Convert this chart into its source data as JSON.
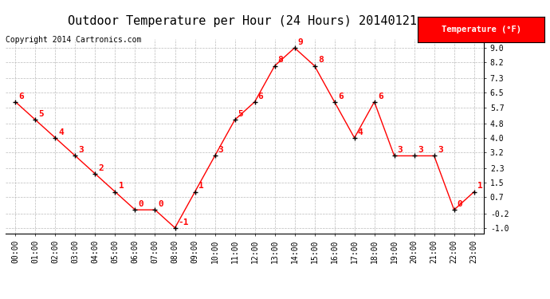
{
  "title": "Outdoor Temperature per Hour (24 Hours) 20140121",
  "copyright": "Copyright 2014 Cartronics.com",
  "legend_label": "Temperature (°F)",
  "hours": [
    "00:00",
    "01:00",
    "02:00",
    "03:00",
    "04:00",
    "05:00",
    "06:00",
    "07:00",
    "08:00",
    "09:00",
    "10:00",
    "11:00",
    "12:00",
    "13:00",
    "14:00",
    "15:00",
    "16:00",
    "17:00",
    "18:00",
    "19:00",
    "20:00",
    "21:00",
    "22:00",
    "23:00"
  ],
  "temps": [
    6,
    5,
    4,
    3,
    2,
    1,
    0,
    0,
    -1,
    1,
    3,
    5,
    6,
    8,
    9,
    8,
    6,
    4,
    6,
    3,
    3,
    3,
    0,
    1
  ],
  "yticks": [
    -1.0,
    -0.2,
    0.7,
    1.5,
    2.3,
    3.2,
    4.0,
    4.8,
    5.7,
    6.5,
    7.3,
    8.2,
    9.0
  ],
  "ylim": [
    -1.3,
    9.5
  ],
  "line_color": "#FF0000",
  "marker_color": "#000000",
  "label_color": "#FF0000",
  "bg_color": "#FFFFFF",
  "grid_color": "#BBBBBB",
  "title_fontsize": 11,
  "copyright_fontsize": 7,
  "tick_fontsize": 7,
  "label_fontsize": 8,
  "legend_bg": "#FF0000",
  "legend_fg": "#FFFFFF"
}
